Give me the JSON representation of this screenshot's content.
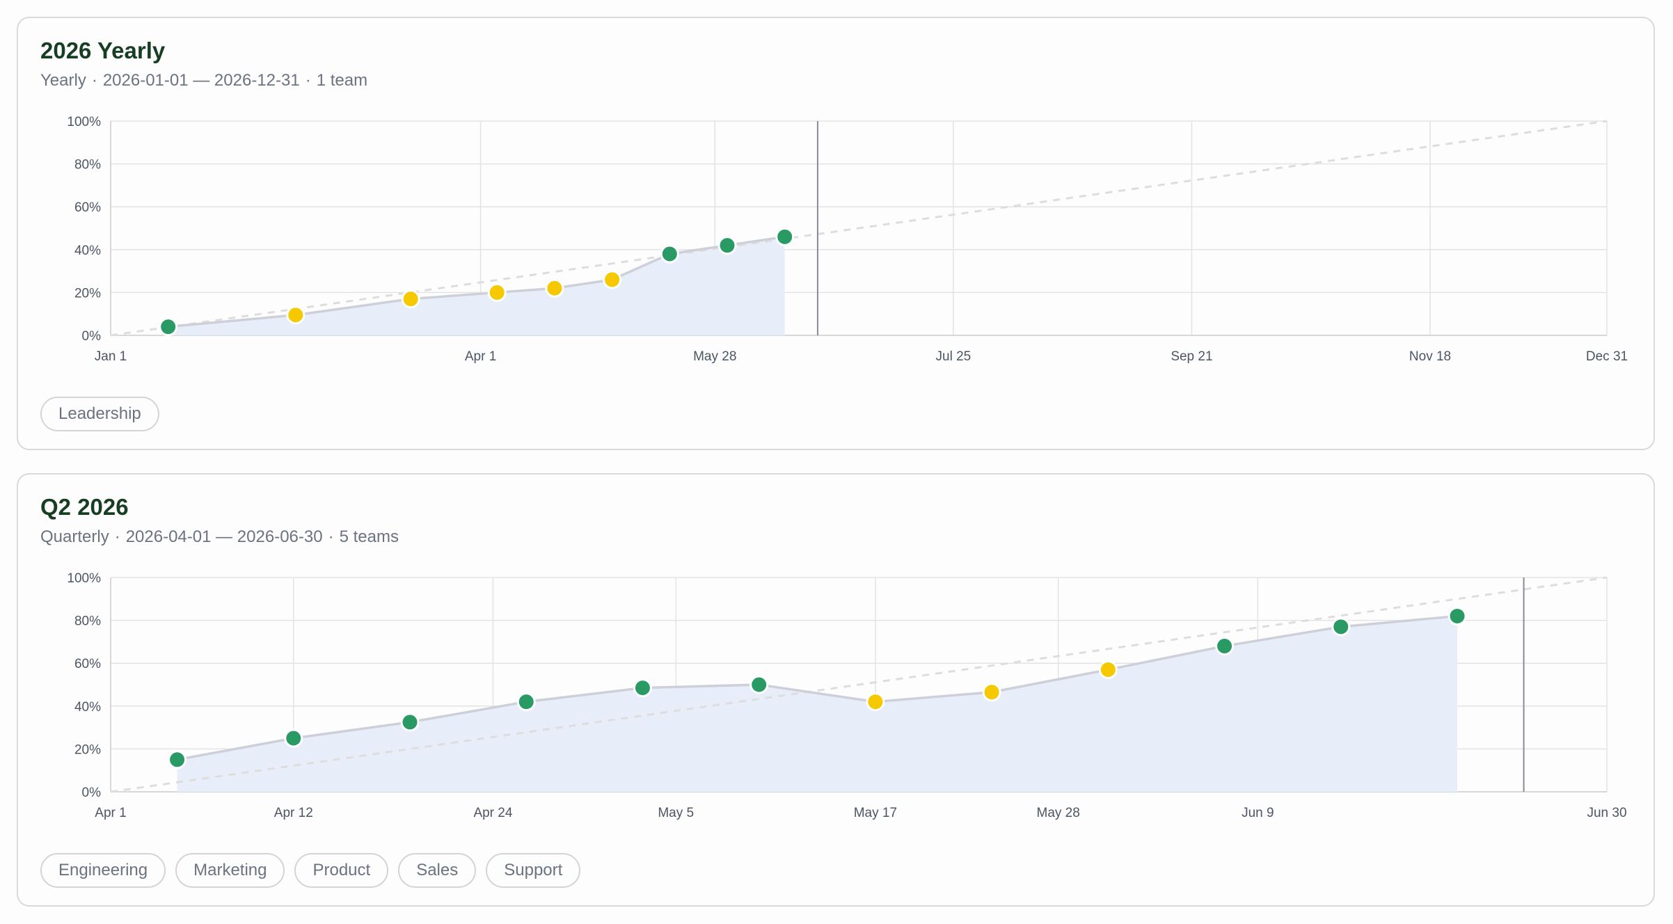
{
  "colors": {
    "on_track": "#2a9a64",
    "at_risk": "#f5c800",
    "area_fill": "#e8eef9",
    "actual_line": "#cdd0d8",
    "ideal_line": "#dddddd",
    "today_line": "#8a8a96",
    "grid": "#e3e3e3",
    "title": "#173d23"
  },
  "cards": [
    {
      "title": "2026 Yearly",
      "subtitle_cadence": "Yearly",
      "subtitle_range": "2026-01-01 — 2026-12-31",
      "subtitle_teams": "1 team",
      "teams": [
        "Leadership"
      ],
      "chart_data": {
        "type": "line",
        "x_range": [
          "2026-01-01",
          "2026-12-31"
        ],
        "ylim": [
          0,
          100
        ],
        "y_ticks": [
          "0%",
          "20%",
          "40%",
          "60%",
          "80%",
          "100%"
        ],
        "x_ticks": [
          {
            "date": "2026-01-01",
            "label": "Jan 1"
          },
          {
            "date": "2026-04-01",
            "label": "Apr 1"
          },
          {
            "date": "2026-05-28",
            "label": "May 28"
          },
          {
            "date": "2026-07-25",
            "label": "Jul 25"
          },
          {
            "date": "2026-09-21",
            "label": "Sep 21"
          },
          {
            "date": "2026-11-18",
            "label": "Nov 18"
          },
          {
            "date": "2026-12-31",
            "label": "Dec 31"
          }
        ],
        "today": "2026-06-22",
        "ideal": [
          {
            "date": "2026-01-01",
            "value": 0
          },
          {
            "date": "2026-12-31",
            "value": 100
          }
        ],
        "series": [
          {
            "points": [
              {
                "date": "2026-01-15",
                "value": 4,
                "status": "on_track"
              },
              {
                "date": "2026-02-15",
                "value": 9.5,
                "status": "at_risk"
              },
              {
                "date": "2026-03-15",
                "value": 17,
                "status": "at_risk"
              },
              {
                "date": "2026-04-05",
                "value": 20,
                "status": "at_risk"
              },
              {
                "date": "2026-04-19",
                "value": 22,
                "status": "at_risk"
              },
              {
                "date": "2026-05-03",
                "value": 26,
                "status": "at_risk"
              },
              {
                "date": "2026-05-17",
                "value": 38,
                "status": "on_track"
              },
              {
                "date": "2026-05-31",
                "value": 42,
                "status": "on_track"
              },
              {
                "date": "2026-06-14",
                "value": 46,
                "status": "on_track"
              }
            ]
          }
        ]
      }
    },
    {
      "title": "Q2 2026",
      "subtitle_cadence": "Quarterly",
      "subtitle_range": "2026-04-01 — 2026-06-30",
      "subtitle_teams": "5 teams",
      "teams": [
        "Engineering",
        "Marketing",
        "Product",
        "Sales",
        "Support"
      ],
      "chart_data": {
        "type": "line",
        "x_range": [
          "2026-04-01",
          "2026-06-30"
        ],
        "ylim": [
          0,
          100
        ],
        "y_ticks": [
          "0%",
          "20%",
          "40%",
          "60%",
          "80%",
          "100%"
        ],
        "x_ticks": [
          {
            "date": "2026-04-01",
            "label": "Apr 1"
          },
          {
            "date": "2026-04-12",
            "label": "Apr 12"
          },
          {
            "date": "2026-04-24",
            "label": "Apr 24"
          },
          {
            "date": "2026-05-05",
            "label": "May 5"
          },
          {
            "date": "2026-05-17",
            "label": "May 17"
          },
          {
            "date": "2026-05-28",
            "label": "May 28"
          },
          {
            "date": "2026-06-09",
            "label": "Jun 9"
          },
          {
            "date": "2026-06-30",
            "label": "Jun 30"
          }
        ],
        "today": "2026-06-25",
        "ideal": [
          {
            "date": "2026-04-01",
            "value": 0
          },
          {
            "date": "2026-06-30",
            "value": 100
          }
        ],
        "series": [
          {
            "points": [
              {
                "date": "2026-04-05",
                "value": 15,
                "status": "on_track"
              },
              {
                "date": "2026-04-12",
                "value": 25,
                "status": "on_track"
              },
              {
                "date": "2026-04-19",
                "value": 32.5,
                "status": "on_track"
              },
              {
                "date": "2026-04-26",
                "value": 42,
                "status": "on_track"
              },
              {
                "date": "2026-05-03",
                "value": 48.5,
                "status": "on_track"
              },
              {
                "date": "2026-05-10",
                "value": 50,
                "status": "on_track"
              },
              {
                "date": "2026-05-17",
                "value": 42,
                "status": "at_risk"
              },
              {
                "date": "2026-05-24",
                "value": 46.5,
                "status": "at_risk"
              },
              {
                "date": "2026-05-31",
                "value": 57,
                "status": "at_risk"
              },
              {
                "date": "2026-06-07",
                "value": 68,
                "status": "on_track"
              },
              {
                "date": "2026-06-14",
                "value": 77,
                "status": "on_track"
              },
              {
                "date": "2026-06-21",
                "value": 82,
                "status": "on_track"
              }
            ]
          }
        ]
      }
    }
  ]
}
